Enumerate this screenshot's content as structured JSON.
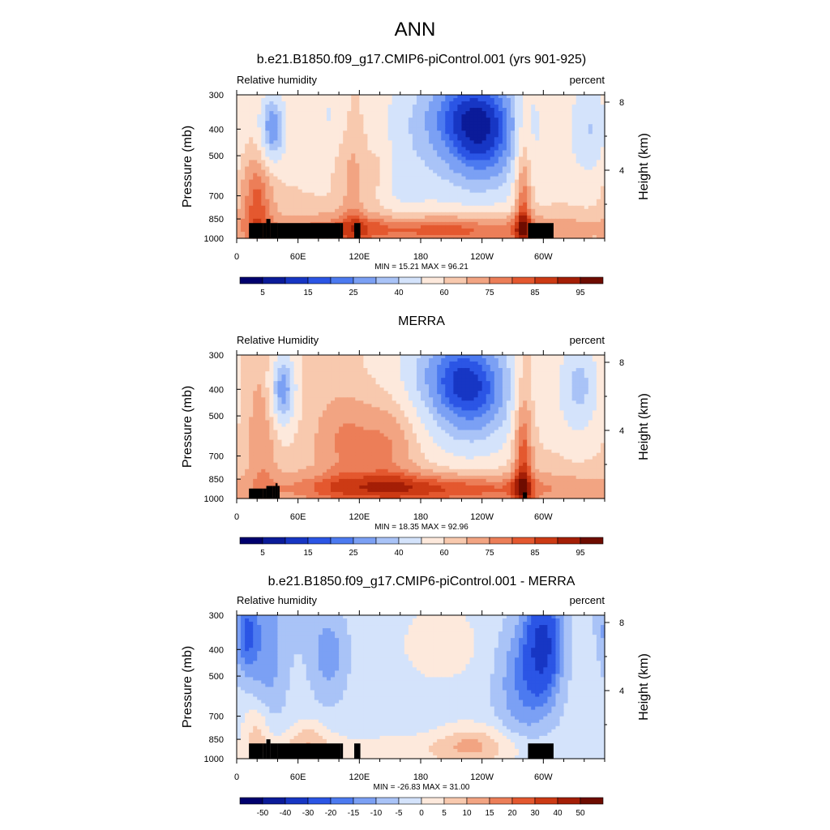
{
  "figure": {
    "title": "ANN"
  },
  "chart_data": [
    {
      "type": "heatmap",
      "title": "b.e21.B1850.f09_g17.CMIP6-piControl.001 (yrs 901-925)",
      "left_label": "Relative humidity",
      "right_label": "percent",
      "ylabel": "Pressure (mb)",
      "ylabel_right": "Height (km)",
      "x_ticks": [
        "0",
        "60E",
        "120E",
        "180",
        "120W",
        "60W"
      ],
      "x_tick_values": [
        0,
        60,
        120,
        180,
        240,
        300
      ],
      "xlim": [
        0,
        360
      ],
      "y_ticks": [
        "300",
        "400",
        "500",
        "700",
        "850",
        "1000"
      ],
      "y_tick_values": [
        300,
        400,
        500,
        700,
        850,
        1000
      ],
      "ylim": [
        1000,
        300
      ],
      "y_scale": "log",
      "height_ticks": [
        "8",
        "4"
      ],
      "height_tick_values": [
        8,
        4
      ],
      "stats": "MIN =  15.21  MAX =  96.21",
      "colorbar": {
        "labels": [
          "5",
          "15",
          "25",
          "40",
          "60",
          "75",
          "85",
          "95"
        ],
        "colors": [
          "#00006e",
          "#0b1b99",
          "#1736c4",
          "#2b55e5",
          "#4c7af0",
          "#7ba0f4",
          "#a9c3f7",
          "#d4e3fb",
          "#fde9dc",
          "#f8c9ae",
          "#f2a482",
          "#ec7e58",
          "#e4582f",
          "#cc3a14",
          "#a41e06",
          "#6e0c00"
        ]
      },
      "field": {
        "base": 60,
        "blobs": [
          {
            "lon": 240,
            "p": 420,
            "sx": 32,
            "sy": 0.38,
            "amp": -42
          },
          {
            "lon": 210,
            "p": 330,
            "sx": 40,
            "sy": 0.3,
            "amp": -18
          },
          {
            "lon": 160,
            "p": 600,
            "sx": 30,
            "sy": 0.45,
            "amp": -12
          },
          {
            "lon": 35,
            "p": 400,
            "sx": 9,
            "sy": 0.22,
            "amp": -35
          },
          {
            "lon": 345,
            "p": 400,
            "sx": 14,
            "sy": 0.3,
            "amp": -20
          },
          {
            "lon": 90,
            "p": 350,
            "sx": 12,
            "sy": 0.2,
            "amp": -10
          },
          {
            "lon": 180,
            "p": 930,
            "sx": 110,
            "sy": 0.1,
            "amp": 28
          },
          {
            "lon": 20,
            "p": 720,
            "sx": 12,
            "sy": 0.3,
            "amp": 22
          },
          {
            "lon": 280,
            "p": 700,
            "sx": 6,
            "sy": 0.55,
            "amp": 26
          },
          {
            "lon": 115,
            "p": 650,
            "sx": 10,
            "sy": 0.45,
            "amp": 14
          },
          {
            "lon": 140,
            "p": 550,
            "sx": 8,
            "sy": 0.3,
            "amp": 10
          }
        ]
      },
      "terrain": [
        [
          12,
          880
        ],
        [
          26,
          880
        ],
        [
          29,
          850
        ],
        [
          33,
          880
        ],
        [
          40,
          880
        ],
        [
          102,
          880
        ],
        [
          104,
          1000
        ],
        [
          115,
          880
        ],
        [
          121,
          1000
        ],
        [
          285,
          880
        ],
        [
          310,
          1000
        ]
      ]
    },
    {
      "type": "heatmap",
      "title": "MERRA",
      "left_label": "Relative Humidity",
      "right_label": "percent",
      "ylabel": "Pressure (mb)",
      "ylabel_right": "Height (km)",
      "x_ticks": [
        "0",
        "60E",
        "120E",
        "180",
        "120W",
        "60W"
      ],
      "x_tick_values": [
        0,
        60,
        120,
        180,
        240,
        300
      ],
      "xlim": [
        0,
        360
      ],
      "y_ticks": [
        "300",
        "400",
        "500",
        "700",
        "850",
        "1000"
      ],
      "y_tick_values": [
        300,
        400,
        500,
        700,
        850,
        1000
      ],
      "ylim": [
        1000,
        300
      ],
      "y_scale": "log",
      "height_ticks": [
        "8",
        "4"
      ],
      "height_tick_values": [
        8,
        4
      ],
      "stats": "MIN =  18.35  MAX =  92.96",
      "colorbar": {
        "labels": [
          "5",
          "15",
          "25",
          "40",
          "60",
          "75",
          "85",
          "95"
        ],
        "colors": [
          "#00006e",
          "#0b1b99",
          "#1736c4",
          "#2b55e5",
          "#4c7af0",
          "#7ba0f4",
          "#a9c3f7",
          "#d4e3fb",
          "#fde9dc",
          "#f8c9ae",
          "#f2a482",
          "#ec7e58",
          "#e4582f",
          "#cc3a14",
          "#a41e06",
          "#6e0c00"
        ]
      },
      "field": {
        "base": 62,
        "blobs": [
          {
            "lon": 230,
            "p": 410,
            "sx": 34,
            "sy": 0.36,
            "amp": -40
          },
          {
            "lon": 200,
            "p": 330,
            "sx": 40,
            "sy": 0.3,
            "amp": -16
          },
          {
            "lon": 45,
            "p": 400,
            "sx": 9,
            "sy": 0.22,
            "amp": -35
          },
          {
            "lon": 335,
            "p": 390,
            "sx": 15,
            "sy": 0.3,
            "amp": -25
          },
          {
            "lon": 180,
            "p": 920,
            "sx": 110,
            "sy": 0.1,
            "amp": 26
          },
          {
            "lon": 105,
            "p": 620,
            "sx": 20,
            "sy": 0.28,
            "amp": 14
          },
          {
            "lon": 150,
            "p": 620,
            "sx": 20,
            "sy": 0.28,
            "amp": 14
          },
          {
            "lon": 280,
            "p": 650,
            "sx": 7,
            "sy": 0.55,
            "amp": 26
          },
          {
            "lon": 25,
            "p": 600,
            "sx": 10,
            "sy": 0.45,
            "amp": 12
          }
        ]
      },
      "terrain": [
        [
          12,
          920
        ],
        [
          26,
          920
        ],
        [
          29,
          900
        ],
        [
          35,
          900
        ],
        [
          38,
          880
        ],
        [
          40,
          900
        ],
        [
          42,
          1000
        ],
        [
          280,
          950
        ],
        [
          284,
          1000
        ]
      ]
    },
    {
      "type": "heatmap",
      "title": "b.e21.B1850.f09_g17.CMIP6-piControl.001 - MERRA",
      "left_label": "Relative humidity",
      "right_label": "percent",
      "ylabel": "Pressure (mb)",
      "ylabel_right": "Height (km)",
      "x_ticks": [
        "0",
        "60E",
        "120E",
        "180",
        "120W",
        "60W"
      ],
      "x_tick_values": [
        0,
        60,
        120,
        180,
        240,
        300
      ],
      "xlim": [
        0,
        360
      ],
      "y_ticks": [
        "300",
        "400",
        "500",
        "700",
        "850",
        "1000"
      ],
      "y_tick_values": [
        300,
        400,
        500,
        700,
        850,
        1000
      ],
      "ylim": [
        1000,
        300
      ],
      "y_scale": "log",
      "height_ticks": [
        "8",
        "4"
      ],
      "height_tick_values": [
        8,
        4
      ],
      "stats": "MIN = -26.83  MAX =  31.00",
      "colorbar": {
        "labels": [
          "-50",
          "-40",
          "-30",
          "-20",
          "-15",
          "-10",
          "-5",
          "0",
          "5",
          "10",
          "15",
          "20",
          "30",
          "40",
          "50"
        ],
        "colors": [
          "#00006e",
          "#0b1b99",
          "#1736c4",
          "#2b55e5",
          "#4c7af0",
          "#7ba0f4",
          "#a9c3f7",
          "#d4e3fb",
          "#fde9dc",
          "#f8c9ae",
          "#f2a482",
          "#ec7e58",
          "#e4582f",
          "#cc3a14",
          "#a41e06",
          "#6e0c00"
        ]
      },
      "field": {
        "base": -3,
        "blobs": [
          {
            "lon": 300,
            "p": 380,
            "sx": 12,
            "sy": 0.3,
            "amp": -28
          },
          {
            "lon": 280,
            "p": 520,
            "sx": 18,
            "sy": 0.35,
            "amp": -12
          },
          {
            "lon": 10,
            "p": 360,
            "sx": 8,
            "sy": 0.22,
            "amp": -15
          },
          {
            "lon": 90,
            "p": 420,
            "sx": 12,
            "sy": 0.25,
            "amp": -10
          },
          {
            "lon": 30,
            "p": 500,
            "sx": 12,
            "sy": 0.3,
            "amp": -8
          },
          {
            "lon": 30,
            "p": 300,
            "sx": 25,
            "sy": 0.25,
            "amp": -6
          },
          {
            "lon": 200,
            "p": 380,
            "sx": 30,
            "sy": 0.25,
            "amp": 6
          },
          {
            "lon": 70,
            "p": 860,
            "sx": 15,
            "sy": 0.12,
            "amp": 10
          },
          {
            "lon": 230,
            "p": 880,
            "sx": 25,
            "sy": 0.12,
            "amp": 10
          },
          {
            "lon": 170,
            "p": 940,
            "sx": 120,
            "sy": 0.1,
            "amp": 6
          },
          {
            "lon": 20,
            "p": 800,
            "sx": 10,
            "sy": 0.2,
            "amp": 10
          }
        ]
      },
      "terrain": [
        [
          12,
          880
        ],
        [
          26,
          880
        ],
        [
          29,
          850
        ],
        [
          33,
          880
        ],
        [
          40,
          880
        ],
        [
          102,
          880
        ],
        [
          104,
          1000
        ],
        [
          115,
          880
        ],
        [
          121,
          1000
        ],
        [
          285,
          880
        ],
        [
          310,
          1000
        ]
      ]
    }
  ]
}
